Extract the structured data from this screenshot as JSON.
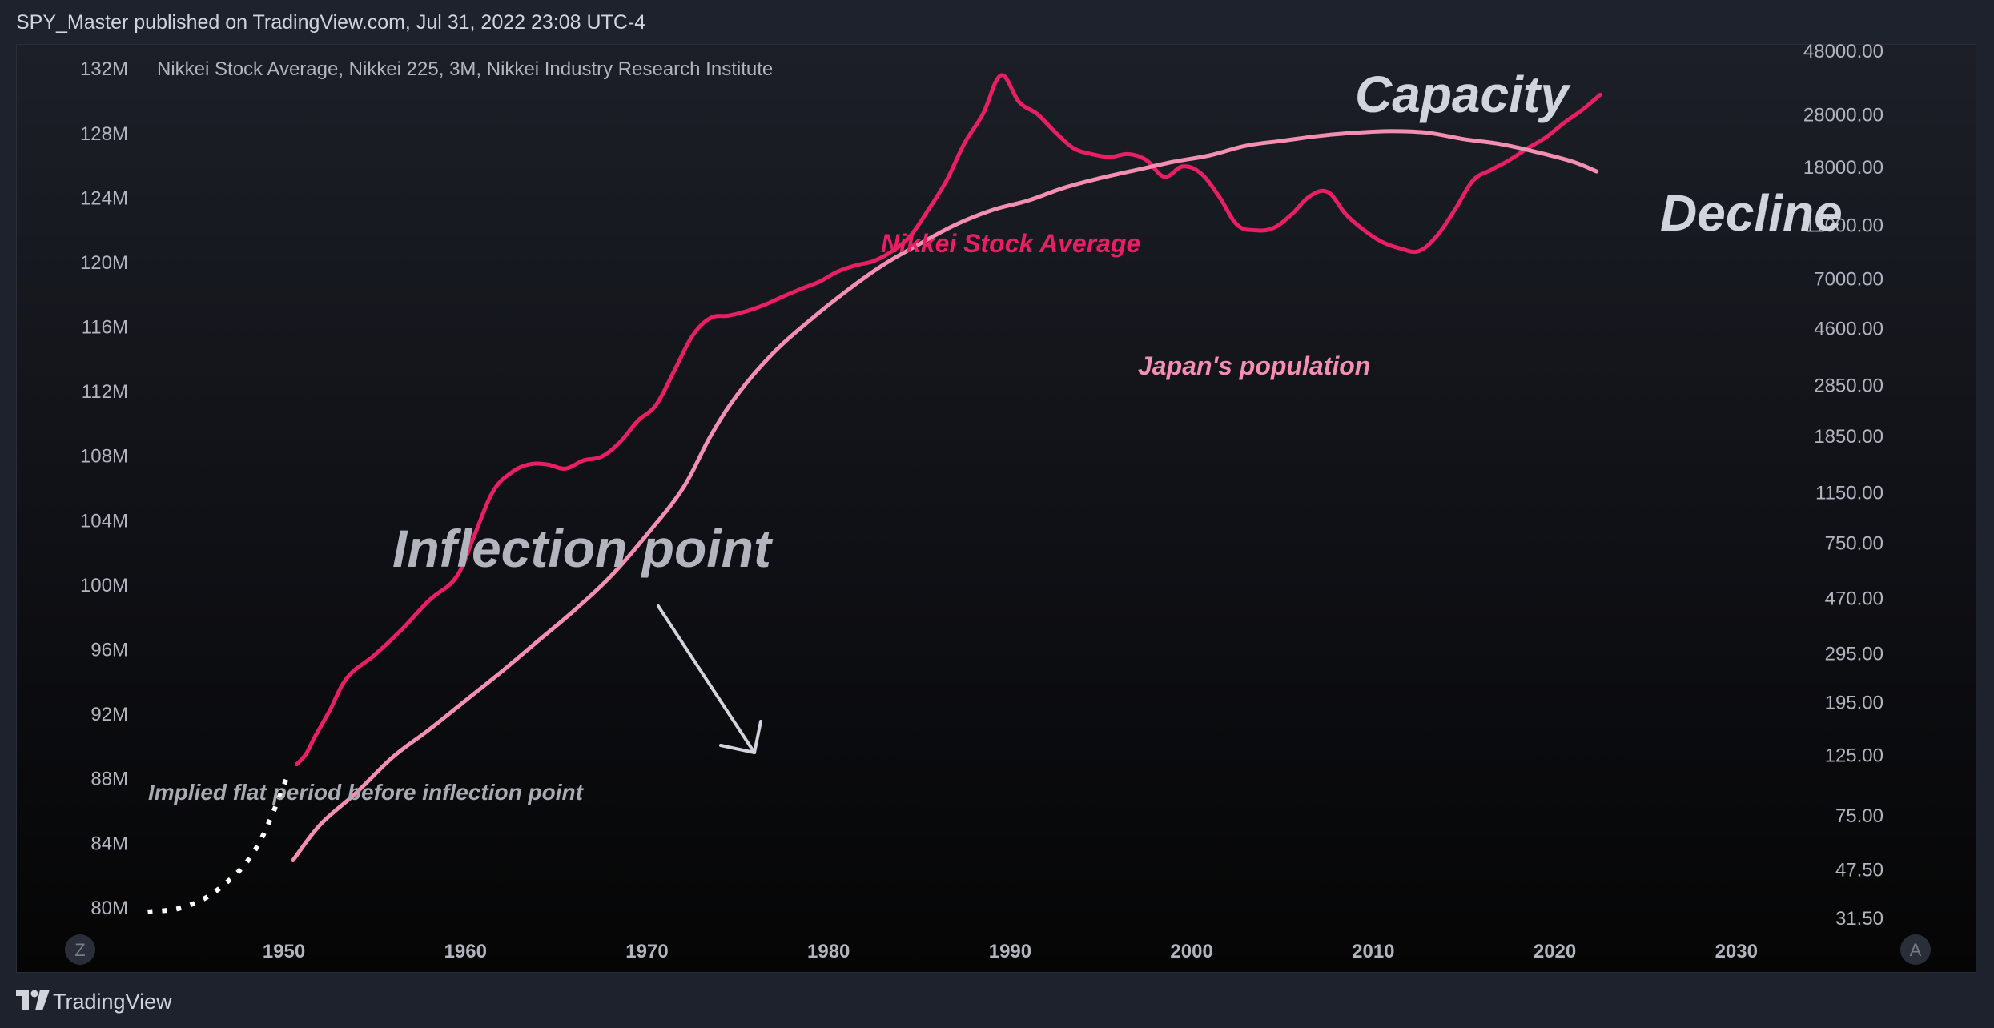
{
  "header": {
    "published_by": "SPY_Master published on TradingView.com, Jul 31, 2022 23:08 UTC-4"
  },
  "footer": {
    "brand": "TradingView",
    "logo_icon": "tradingview-logo-icon"
  },
  "buttons": {
    "left_scale": "Z",
    "right_scale": "A"
  },
  "colors": {
    "nikkei": "#e91e63",
    "population": "#f48fb1",
    "annotation_gray": "#b2b5be",
    "annotation_light": "#d1d4dc",
    "implied_dots": "#ffffff"
  },
  "chart_data": {
    "type": "line",
    "title": "Nikkei Stock Average, Nikkei 225, 3M, Nikkei Industry Research Institute",
    "x_ticks": [
      "1950",
      "1960",
      "1970",
      "1980",
      "1990",
      "2000",
      "2010",
      "2020",
      "2030"
    ],
    "xlim": [
      1942.3,
      2031.4
    ],
    "left_axis": {
      "ticks": [
        "132M",
        "128M",
        "124M",
        "120M",
        "116M",
        "112M",
        "108M",
        "104M",
        "100M",
        "96M",
        "92M",
        "88M",
        "84M",
        "80M"
      ],
      "tick_values": [
        132,
        128,
        124,
        120,
        116,
        112,
        108,
        104,
        100,
        96,
        92,
        88,
        84,
        80
      ],
      "ylim": [
        79.3,
        133.1
      ],
      "unit": "M"
    },
    "right_axis": {
      "scale": "log",
      "ticks": [
        "48000.00",
        "28000.00",
        "18000.00",
        "11000.00",
        "7000.00",
        "4600.00",
        "2850.00",
        "1850.00",
        "1150.00",
        "750.00",
        "470.00",
        "295.00",
        "195.00",
        "125.00",
        "75.00",
        "47.50",
        "31.50"
      ],
      "tick_values": [
        48000,
        28000,
        18000,
        11000,
        7000,
        4600,
        2850,
        1850,
        1150,
        750,
        470,
        295,
        195,
        125,
        75,
        47.5,
        31.5
      ]
    },
    "series": [
      {
        "name": "Nikkei Stock Average",
        "axis": "right",
        "x": [
          1950.7,
          1951.2,
          1951.7,
          1952.5,
          1953.5,
          1955,
          1956.5,
          1958,
          1959.5,
          1960.5,
          1961.5,
          1962.5,
          1963.5,
          1964.5,
          1965.5,
          1966.5,
          1967.5,
          1968.5,
          1969.5,
          1970.5,
          1971.5,
          1972.5,
          1973.5,
          1974.5,
          1975.5,
          1976.5,
          1977.5,
          1978.5,
          1979.5,
          1980.5,
          1981.5,
          1982.5,
          1983.5,
          1984.5,
          1985.5,
          1986.5,
          1987.5,
          1988.5,
          1989.5,
          1990.5,
          1991.5,
          1992.5,
          1993.5,
          1994.5,
          1995.5,
          1996.5,
          1997.5,
          1998.5,
          1999.5,
          2000.5,
          2001.5,
          2002.5,
          2003.5,
          2004.5,
          2005.5,
          2006.5,
          2007.5,
          2008.5,
          2009.5,
          2010.5,
          2011.5,
          2012.5,
          2013.5,
          2014.5,
          2015.5,
          2016.5,
          2017.5,
          2018.5,
          2019.5,
          2020.5,
          2021.5,
          2022.5
        ],
        "values": [
          115,
          125,
          145,
          180,
          240,
          290,
          360,
          460,
          560,
          800,
          1150,
          1350,
          1450,
          1450,
          1400,
          1500,
          1550,
          1750,
          2100,
          2400,
          3200,
          4300,
          5000,
          5100,
          5300,
          5600,
          6000,
          6400,
          6800,
          7400,
          7800,
          8100,
          8800,
          10000,
          12500,
          16000,
          22000,
          28000,
          38900,
          31000,
          28000,
          24000,
          21000,
          20000,
          19500,
          20000,
          19000,
          16500,
          18000,
          17000,
          14000,
          11000,
          10500,
          10700,
          12000,
          14000,
          14500,
          12000,
          10500,
          9500,
          9000,
          8800,
          10000,
          12500,
          16000,
          17500,
          19000,
          21000,
          23000,
          26000,
          29000,
          33000
        ]
      },
      {
        "name": "Japan's population",
        "axis": "left",
        "x": [
          1950.5,
          1952,
          1954,
          1956,
          1958,
          1960,
          1962,
          1964,
          1966,
          1968,
          1970,
          1972,
          1973.5,
          1975,
          1977,
          1979,
          1981,
          1983,
          1985,
          1987,
          1989,
          1991,
          1993,
          1995,
          1997,
          1999,
          2001,
          2003,
          2005,
          2007,
          2009,
          2011,
          2013,
          2015,
          2017,
          2019,
          2021,
          2022.3
        ],
        "values": [
          82.9,
          85.1,
          87.1,
          89.3,
          91.0,
          92.8,
          94.6,
          96.5,
          98.4,
          100.5,
          103.1,
          106.0,
          109.2,
          111.8,
          114.4,
          116.4,
          118.2,
          119.8,
          121.1,
          122.3,
          123.2,
          123.8,
          124.6,
          125.2,
          125.7,
          126.2,
          126.6,
          127.2,
          127.5,
          127.8,
          128.0,
          128.1,
          128.0,
          127.6,
          127.3,
          126.8,
          126.2,
          125.6
        ]
      }
    ],
    "implied_flat": {
      "axis": "left",
      "x": [
        1942.5,
        1944.5,
        1946.5,
        1948.5,
        1950.3
      ],
      "values": [
        79.7,
        80.0,
        81.2,
        83.7,
        88.4
      ]
    },
    "annotations": {
      "nikkei_label": "Nikkei Stock Average",
      "population_label": "Japan's population",
      "inflection": "Inflection point",
      "implied": "Implied flat period before inflection point",
      "capacity": "Capacity",
      "decline": "Decline"
    },
    "grid": false,
    "legend": "none"
  }
}
